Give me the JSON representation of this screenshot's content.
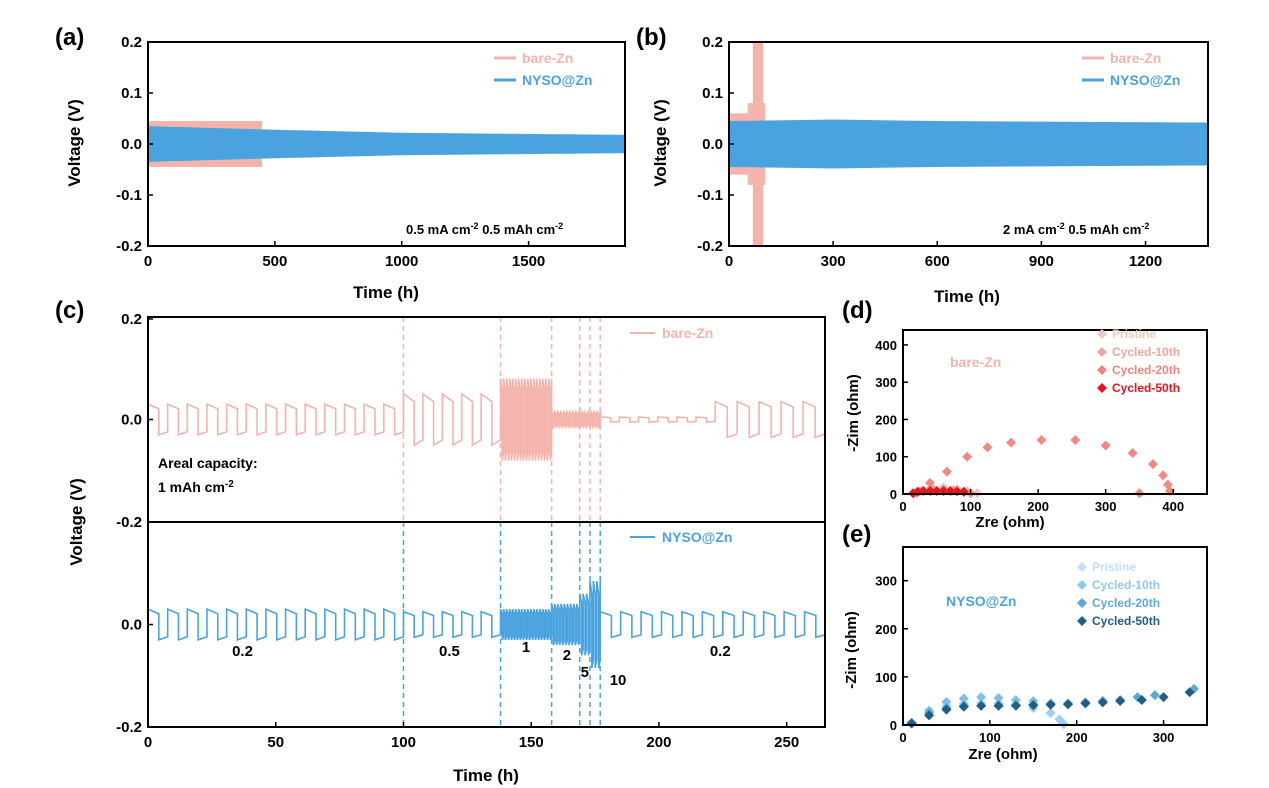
{
  "colors": {
    "bare": "#f4b4ac",
    "bare_mid": "#f08a80",
    "bare_dark": "#e0504a",
    "bare_red": "#e8161c",
    "nyso": "#4aa3df",
    "nyso_light": "#9ed0f2",
    "nyso_mid": "#5aa8dc",
    "nyso_dark": "#1f5f86"
  },
  "chart_data": [
    {
      "panel": "(a)",
      "type": "line",
      "xlabel": "Time (h)",
      "ylabel": "Voltage (V)",
      "xlim": [
        0,
        1880
      ],
      "ylim": [
        -0.2,
        0.2
      ],
      "xticks": [
        "0",
        "500",
        "1000",
        "1500"
      ],
      "yticks": [
        "0.2",
        "0.1",
        "0.0",
        "-0.1",
        "-0.2"
      ],
      "annotation": "0.5 mA cm-2 0.5 mAh cm-2",
      "annotation_parts": [
        "0.5 mA cm",
        "-2",
        " 0.5 mAh cm",
        "-2"
      ],
      "legend_position": "top-right",
      "series": [
        {
          "name": "bare-Zn",
          "x": [
            0,
            450
          ],
          "envelope": [
            [
              0,
              0.045
            ],
            [
              450,
              0.045
            ]
          ]
        },
        {
          "name": "NYSO@Zn",
          "x": [
            0,
            1880
          ],
          "envelope": [
            [
              0,
              0.035
            ],
            [
              500,
              0.028
            ],
            [
              1000,
              0.022
            ],
            [
              1880,
              0.018
            ]
          ]
        }
      ]
    },
    {
      "panel": "(b)",
      "type": "line",
      "xlabel": "Time (h)",
      "ylabel": "Voltage (V)",
      "xlim": [
        0,
        1380
      ],
      "ylim": [
        -0.2,
        0.2
      ],
      "xticks": [
        "0",
        "300",
        "600",
        "900",
        "1200"
      ],
      "yticks": [
        "0.2",
        "0.1",
        "0.0",
        "-0.1",
        "-0.2"
      ],
      "annotation": "2 mA cm-2 0.5 mAh cm-2",
      "annotation_parts": [
        "2 mA cm",
        "-2",
        " 0.5 mAh cm",
        "-2"
      ],
      "legend_position": "top-right",
      "series": [
        {
          "name": "bare-Zn",
          "x": [
            0,
            100
          ],
          "envelope": [
            [
              0,
              0.06
            ],
            [
              60,
              0.06
            ],
            [
              80,
              0.2
            ],
            [
              100,
              0.2
            ]
          ]
        },
        {
          "name": "NYSO@Zn",
          "x": [
            0,
            1380
          ],
          "envelope": [
            [
              0,
              0.045
            ],
            [
              300,
              0.048
            ],
            [
              600,
              0.045
            ],
            [
              1380,
              0.042
            ]
          ]
        }
      ]
    },
    {
      "panel": "(c)",
      "type": "line",
      "xlabel": "Time (h)",
      "ylabel": "Voltage (V)",
      "xlim": [
        0,
        265
      ],
      "ylim_each": [
        -0.2,
        0.2
      ],
      "xticks": [
        "0",
        "50",
        "100",
        "150",
        "200",
        "250"
      ],
      "yticks_top": [
        "0.2",
        "0.0"
      ],
      "yticks_bottom": [
        "-0.2",
        "0.0",
        "-0.2"
      ],
      "areal_capacity_label": "Areal capacity:",
      "areal_capacity_value": "1 mAh cm-2",
      "areal_capacity_parts": [
        "1 mAh cm",
        "-2"
      ],
      "dashed_lines_x": [
        100,
        138,
        158,
        169,
        173,
        177
      ],
      "rate_labels": [
        {
          "text": "0.2",
          "x": 37
        },
        {
          "text": "0.5",
          "x": 118
        },
        {
          "text": "1",
          "x": 148
        },
        {
          "text": "2",
          "x": 164
        },
        {
          "text": "5",
          "x": 171
        },
        {
          "text": "10",
          "x": 184
        },
        {
          "text": "0.2",
          "x": 224
        }
      ],
      "series": [
        {
          "name": "bare-Zn",
          "segments": [
            [
              0,
              100,
              0.03
            ],
            [
              100,
              138,
              0.05
            ],
            [
              138,
              158,
              0.08
            ],
            [
              158,
              177,
              0.015
            ],
            [
              177,
              222,
              0.005
            ],
            [
              222,
              265,
              0.035
            ]
          ]
        },
        {
          "name": "NYSO@Zn",
          "segments": [
            [
              0,
              100,
              0.03
            ],
            [
              100,
              138,
              0.025
            ],
            [
              138,
              158,
              0.03
            ],
            [
              158,
              169,
              0.04
            ],
            [
              169,
              173,
              0.06
            ],
            [
              173,
              177,
              0.085
            ],
            [
              177,
              265,
              0.025
            ]
          ]
        }
      ]
    },
    {
      "panel": "(d)",
      "type": "scatter",
      "xlabel": "Zre (ohm)",
      "ylabel": "-Zim (ohm)",
      "xlim": [
        0,
        450
      ],
      "ylim": [
        0,
        440
      ],
      "xticks": [
        "0",
        "100",
        "200",
        "300",
        "400"
      ],
      "yticks": [
        "400",
        "300",
        "200",
        "100",
        "0"
      ],
      "inner_label": "bare-Zn",
      "legend_position": "top-right",
      "series": [
        {
          "name": "Pristine",
          "points": [
            [
              15,
              2
            ],
            [
              25,
              8
            ],
            [
              40,
              14
            ],
            [
              60,
              18
            ],
            [
              80,
              14
            ],
            [
              95,
              8
            ],
            [
              110,
              2
            ]
          ]
        },
        {
          "name": "Cycled-10th",
          "points": [
            [
              20,
              5
            ],
            [
              40,
              30
            ],
            [
              65,
              60
            ],
            [
              95,
              100
            ],
            [
              125,
              125
            ],
            [
              160,
              138
            ],
            [
              205,
              145
            ],
            [
              255,
              145
            ],
            [
              300,
              130
            ],
            [
              340,
              110
            ],
            [
              370,
              80
            ],
            [
              385,
              50
            ],
            [
              392,
              25
            ],
            [
              395,
              8
            ],
            [
              350,
              2
            ]
          ]
        },
        {
          "name": "Cycled-20th",
          "points": [
            [
              20,
              3
            ],
            [
              30,
              8
            ],
            [
              45,
              12
            ],
            [
              60,
              12
            ],
            [
              75,
              10
            ],
            [
              90,
              6
            ],
            [
              100,
              2
            ]
          ]
        },
        {
          "name": "Cycled-50th",
          "points": [
            [
              15,
              2
            ],
            [
              22,
              6
            ],
            [
              30,
              8
            ],
            [
              40,
              8
            ],
            [
              50,
              8
            ],
            [
              60,
              8
            ],
            [
              70,
              8
            ],
            [
              80,
              7
            ],
            [
              90,
              6
            ]
          ]
        }
      ]
    },
    {
      "panel": "(e)",
      "type": "scatter",
      "xlabel": "Zre (ohm)",
      "ylabel": "-Zim (ohm)",
      "xlim": [
        0,
        350
      ],
      "ylim": [
        0,
        370
      ],
      "xticks": [
        "0",
        "100",
        "200",
        "300"
      ],
      "yticks": [
        "300",
        "200",
        "100",
        "0"
      ],
      "inner_label": "NYSO@Zn",
      "legend_position": "top-right",
      "series": [
        {
          "name": "Pristine",
          "points": [
            [
              10,
              5
            ],
            [
              30,
              25
            ],
            [
              50,
              40
            ],
            [
              70,
              45
            ],
            [
              90,
              45
            ],
            [
              110,
              45
            ],
            [
              130,
              42
            ],
            [
              150,
              35
            ],
            [
              170,
              25
            ],
            [
              180,
              12
            ],
            [
              185,
              2
            ]
          ]
        },
        {
          "name": "Cycled-10th",
          "points": [
            [
              10,
              5
            ],
            [
              30,
              30
            ],
            [
              50,
              48
            ],
            [
              70,
              55
            ],
            [
              90,
              58
            ],
            [
              110,
              56
            ],
            [
              130,
              52
            ],
            [
              150,
              50
            ],
            [
              170,
              45
            ]
          ]
        },
        {
          "name": "Cycled-20th",
          "points": [
            [
              10,
              4
            ],
            [
              30,
              25
            ],
            [
              50,
              35
            ],
            [
              70,
              40
            ],
            [
              90,
              40
            ],
            [
              110,
              40
            ],
            [
              130,
              42
            ],
            [
              150,
              43
            ],
            [
              170,
              44
            ],
            [
              190,
              45
            ],
            [
              210,
              47
            ],
            [
              230,
              50
            ],
            [
              250,
              52
            ],
            [
              270,
              58
            ],
            [
              290,
              62
            ],
            [
              335,
              75
            ]
          ]
        },
        {
          "name": "Cycled-50th",
          "points": [
            [
              10,
              3
            ],
            [
              30,
              20
            ],
            [
              50,
              32
            ],
            [
              70,
              38
            ],
            [
              90,
              40
            ],
            [
              110,
              40
            ],
            [
              130,
              40
            ],
            [
              150,
              41
            ],
            [
              170,
              42
            ],
            [
              190,
              43
            ],
            [
              210,
              45
            ],
            [
              230,
              47
            ],
            [
              250,
              50
            ],
            [
              275,
              52
            ],
            [
              300,
              58
            ],
            [
              330,
              68
            ]
          ]
        }
      ]
    }
  ]
}
